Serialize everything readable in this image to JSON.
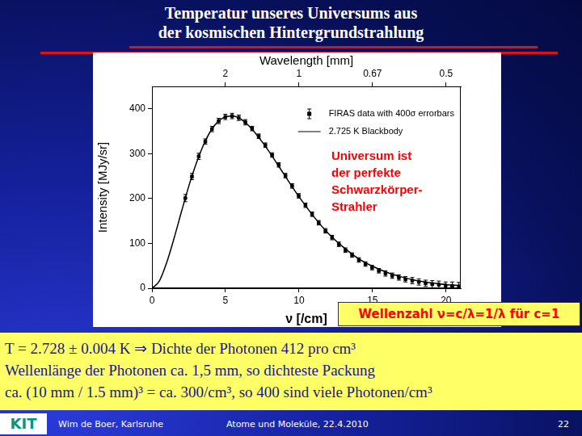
{
  "slide": {
    "title": [
      "Temperatur unseres Universums aus",
      "der kosmischen Hintergrundstrahlung"
    ],
    "text": [
      "T = 2.728 ± 0.004 K ⇒ Dichte der Photonen 412 pro cm³",
      "Wellenlänge der Photonen ca. 1,5 mm, so dichteste Packung",
      "ca. (10 mm / 1.5 mm)³ = ca. 300/cm³, so 400 sind viele Photonen/cm³"
    ],
    "footer": {
      "logo": "KIT",
      "author": "Wim de Boer, Karlsruhe",
      "event": "Atome und Moleküle, 22.4.2010",
      "page": "22"
    }
  },
  "chart_data": {
    "type": "scatter",
    "x_label": "ν [/cm]",
    "x2_label": "Wavelength [mm]",
    "y_label": "Intensity [MJy/sr]",
    "xlim": [
      0,
      21
    ],
    "xticks": [
      0,
      5,
      10,
      15,
      20
    ],
    "x2lim": [
      0,
      21
    ],
    "x2ticks": [
      {
        "value": 5,
        "label": "2"
      },
      {
        "value": 10,
        "label": "1"
      },
      {
        "value": 15,
        "label": "0.67"
      },
      {
        "value": 20,
        "label": "0.5"
      }
    ],
    "ylim": [
      0,
      450
    ],
    "yticks": [
      0,
      100,
      200,
      300,
      400
    ],
    "grid": false,
    "legend": "upper right",
    "series": [
      {
        "name": "FIRAS data with 400σ errorbars",
        "type": "scatter",
        "marker": "square",
        "color": "#000000",
        "x": [
          2.27,
          2.72,
          3.18,
          3.63,
          4.08,
          4.54,
          4.99,
          5.45,
          5.9,
          6.35,
          6.81,
          7.26,
          7.71,
          8.17,
          8.62,
          9.08,
          9.53,
          9.98,
          10.44,
          10.89,
          11.34,
          11.8,
          12.25,
          12.71,
          13.16,
          13.61,
          14.07,
          14.52,
          14.97,
          15.43,
          15.88,
          16.34,
          16.79,
          17.24,
          17.7,
          18.15,
          18.61,
          19.06,
          19.51,
          19.97,
          20.42,
          20.87
        ],
        "values": [
          201,
          249,
          294,
          327,
          355,
          373,
          382,
          384,
          380,
          370,
          356,
          339,
          319,
          297,
          275,
          251,
          228,
          206,
          185,
          165,
          146,
          128,
          113,
          98,
          85,
          74,
          63,
          54,
          46,
          39,
          33,
          28,
          24,
          20,
          17,
          14,
          11,
          9,
          8,
          6,
          5,
          4
        ],
        "errors": [
          8,
          7,
          7,
          6,
          6,
          6,
          6,
          6,
          6,
          6,
          5,
          5,
          5,
          5,
          5,
          5,
          5,
          5,
          5,
          5,
          5,
          5,
          5,
          5,
          5,
          5,
          5,
          5,
          5,
          5,
          6,
          6,
          6,
          6,
          7,
          7,
          7,
          8,
          8,
          8,
          9,
          9
        ]
      },
      {
        "name": "2.725 K Blackbody",
        "type": "line",
        "line_style": "solid",
        "color": "#000000",
        "x": [
          0,
          0.5,
          1,
          1.5,
          2,
          2.5,
          3,
          3.5,
          4,
          4.5,
          5,
          5.5,
          6,
          6.5,
          7,
          7.5,
          8,
          8.5,
          9,
          9.5,
          10,
          11,
          12,
          13,
          14,
          15,
          16,
          17,
          18,
          19,
          20,
          21
        ],
        "values": [
          0,
          16,
          57,
          111,
          170,
          227,
          277,
          319,
          351,
          372,
          382,
          384,
          378,
          365,
          347,
          326,
          303,
          278,
          253,
          228,
          204,
          160,
          122,
          92,
          67,
          49,
          35,
          25,
          17,
          12,
          8,
          6
        ]
      }
    ],
    "annotations": [
      {
        "text": [
          "Universum ist",
          "der perfekte",
          "Schwarzkörper-",
          "Strahler"
        ]
      },
      {
        "text": [
          "Wellenzahl ν=c/λ=1/λ für c=1"
        ]
      }
    ]
  }
}
